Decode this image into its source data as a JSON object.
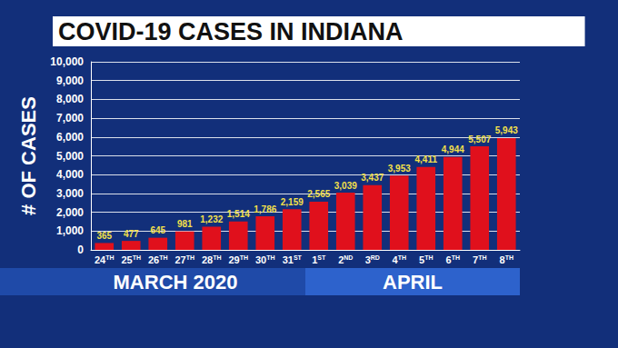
{
  "chart_data": {
    "type": "bar",
    "title": "COVID-19 CASES IN INDIANA",
    "y_label": "# OF CASES",
    "categories": [
      "24TH",
      "25TH",
      "26TH",
      "27TH",
      "28TH",
      "29TH",
      "30TH",
      "31ST",
      "1ST",
      "2ND",
      "3RD",
      "4TH",
      "5TH",
      "6TH",
      "7TH",
      "8TH"
    ],
    "values": [
      365,
      477,
      645,
      981,
      1232,
      1514,
      1786,
      2159,
      2565,
      3039,
      3437,
      3953,
      4411,
      4944,
      5507,
      5943
    ],
    "value_labels": [
      "365",
      "477",
      "645",
      "981",
      "1,232",
      "1,514",
      "1,786",
      "2,159",
      "2,565",
      "3,039",
      "3,437",
      "3,953",
      "4,411",
      "4,944",
      "5,507",
      "5,943"
    ],
    "category_groups": [
      {
        "label": "MARCH 2020",
        "start": 0,
        "end": 7
      },
      {
        "label": "APRIL",
        "start": 8,
        "end": 15
      }
    ],
    "color": "#e0101c",
    "ylim": [
      0,
      10000
    ],
    "yticks": [
      0,
      {
        "value": 1000,
        "label": "1,000"
      },
      {
        "value": 2000,
        "label": "2,000"
      },
      {
        "value": 3000,
        "label": "3,000"
      },
      {
        "value": 4000,
        "label": "4,000"
      },
      {
        "value": 5000,
        "label": "5,000"
      },
      {
        "value": 6000,
        "label": "6,000"
      },
      {
        "value": 7000,
        "label": "7,000"
      },
      {
        "value": 8000,
        "label": "8,000"
      },
      {
        "value": 9000,
        "label": "9,000"
      },
      {
        "value": 10000,
        "label": "10,000"
      }
    ],
    "grid": true,
    "data_labels": true
  }
}
